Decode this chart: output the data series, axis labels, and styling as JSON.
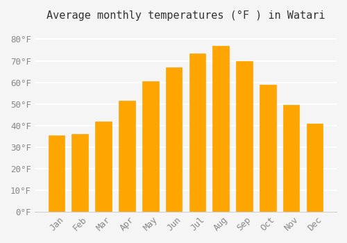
{
  "title": "Average monthly temperatures (°F ) in Watari",
  "months": [
    "Jan",
    "Feb",
    "Mar",
    "Apr",
    "May",
    "Jun",
    "Jul",
    "Aug",
    "Sep",
    "Oct",
    "Nov",
    "Dec"
  ],
  "values": [
    35.5,
    36.0,
    42.0,
    51.5,
    60.5,
    67.0,
    73.5,
    77.0,
    70.0,
    59.0,
    49.5,
    41.0
  ],
  "bar_color": "#FFA500",
  "bar_edge_color": "#FFB733",
  "background_color": "#f5f5f5",
  "grid_color": "#ffffff",
  "ylim": [
    0,
    85
  ],
  "yticks": [
    0,
    10,
    20,
    30,
    40,
    50,
    60,
    70,
    80
  ],
  "ylabel_suffix": "°F",
  "title_fontsize": 11,
  "tick_fontsize": 9
}
